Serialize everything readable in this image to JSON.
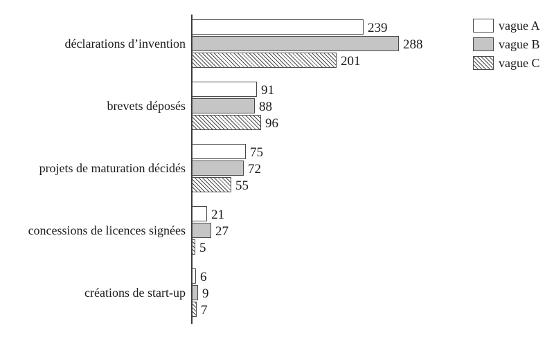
{
  "chart_data": {
    "type": "bar",
    "orientation": "horizontal",
    "title": "",
    "xlabel": "",
    "ylabel": "",
    "categories": [
      "déclarations d’invention",
      "brevets déposés",
      "projets de maturation décidés",
      "concessions de licences signées",
      "créations de start-up"
    ],
    "series": [
      {
        "name": "vague A",
        "fill": "white",
        "values": [
          239,
          91,
          75,
          21,
          6
        ]
      },
      {
        "name": "vague B",
        "fill": "gray",
        "values": [
          288,
          88,
          72,
          27,
          9
        ]
      },
      {
        "name": "vague C",
        "fill": "hatched",
        "values": [
          201,
          96,
          55,
          5,
          7
        ]
      }
    ],
    "xlim": [
      0,
      300
    ],
    "data_labels": true,
    "gridlines": false,
    "legend_position": "top-right"
  },
  "colors": {
    "background": "#ffffff",
    "bar_white": "#ffffff",
    "bar_gray": "#c5c5c5",
    "hatch_line": "#4a4a4a",
    "bar_border": "#4a4a4a",
    "axis": "#3a3a3a",
    "text": "#1a1a1a"
  }
}
